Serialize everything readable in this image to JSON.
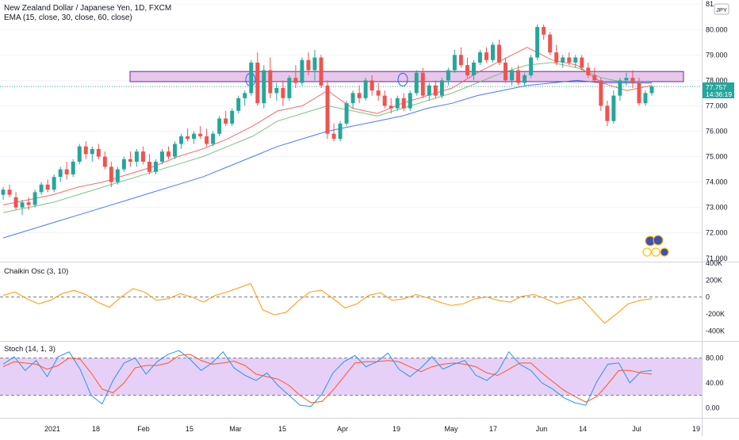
{
  "header": {
    "title": "New Zealand Dollar / Japanese Yen, 1D, FXCM",
    "ema_label": "EMA (15, close, 30, close, 60, close)",
    "currency_badge": "JPY"
  },
  "price_tag": {
    "price": "77.757",
    "countdown": "14:36:19"
  },
  "colors": {
    "up": "#26a69a",
    "down": "#ef5350",
    "ema15": "#ef5350",
    "ema30": "#66bb6a",
    "ema60": "#2962ff",
    "zone_fill": "#e1bee7",
    "zone_stroke": "#7b1fa2",
    "stoch_band": "#e1c4f5",
    "osc": "#ff9800",
    "stoch_k": "#2196f3",
    "stoch_d": "#ff5722"
  },
  "chart_data": [
    {
      "type": "candlestick",
      "title": "New Zealand Dollar / Japanese Yen, 1D, FXCM",
      "ylim": [
        70.9,
        81.1
      ],
      "y_ticks": [
        "71.000",
        "72.000",
        "73.000",
        "74.000",
        "75.000",
        "76.000",
        "77.000",
        "78.000",
        "79.000",
        "80.000",
        "81"
      ],
      "x_ticks": [
        "2021",
        "18",
        "Feb",
        "15",
        "Mar",
        "15",
        "Apr",
        "19",
        "May",
        "17",
        "Jun",
        "14",
        "Jul",
        "19"
      ],
      "series": [
        {
          "name": "EMA (15, close)",
          "values": [
            73.1,
            73.3,
            73.5,
            73.8,
            74.0,
            74.3,
            74.6,
            75.0,
            75.3,
            75.7,
            76.2,
            76.8,
            77.0,
            77.6,
            76.9,
            76.7,
            77.1,
            77.4,
            77.7,
            78.3,
            78.8,
            79.3,
            78.8,
            78.6,
            77.9,
            77.6,
            77.8
          ]
        },
        {
          "name": "EMA (30, close)",
          "values": [
            72.8,
            73.0,
            73.2,
            73.5,
            73.8,
            74.1,
            74.4,
            74.7,
            75.0,
            75.4,
            75.8,
            76.4,
            76.7,
            77.0,
            76.8,
            76.6,
            76.9,
            77.2,
            77.5,
            77.9,
            78.3,
            78.6,
            78.7,
            78.5,
            78.1,
            77.9,
            77.9
          ]
        },
        {
          "name": "EMA (60, close)",
          "values": [
            71.8,
            72.1,
            72.4,
            72.7,
            73.0,
            73.3,
            73.6,
            73.9,
            74.2,
            74.6,
            75.0,
            75.4,
            75.7,
            76.0,
            76.2,
            76.4,
            76.6,
            76.9,
            77.1,
            77.4,
            77.6,
            77.8,
            77.9,
            78.0,
            77.9,
            77.9,
            77.9
          ]
        }
      ],
      "candles": [
        {
          "o": 73.5,
          "h": 73.8,
          "l": 73.3,
          "c": 73.7
        },
        {
          "o": 73.7,
          "h": 73.9,
          "l": 73.4,
          "c": 73.5
        },
        {
          "o": 73.4,
          "h": 73.6,
          "l": 72.9,
          "c": 73.0
        },
        {
          "o": 73.0,
          "h": 73.3,
          "l": 72.7,
          "c": 73.2
        },
        {
          "o": 73.2,
          "h": 73.4,
          "l": 72.9,
          "c": 73.1
        },
        {
          "o": 73.1,
          "h": 73.7,
          "l": 73.0,
          "c": 73.6
        },
        {
          "o": 73.6,
          "h": 74.0,
          "l": 73.5,
          "c": 73.9
        },
        {
          "o": 73.9,
          "h": 74.1,
          "l": 73.6,
          "c": 73.7
        },
        {
          "o": 73.7,
          "h": 74.3,
          "l": 73.6,
          "c": 74.2
        },
        {
          "o": 74.2,
          "h": 74.6,
          "l": 74.0,
          "c": 74.5
        },
        {
          "o": 74.5,
          "h": 74.8,
          "l": 74.1,
          "c": 74.3
        },
        {
          "o": 74.3,
          "h": 74.9,
          "l": 74.2,
          "c": 74.8
        },
        {
          "o": 74.8,
          "h": 75.5,
          "l": 74.7,
          "c": 75.4
        },
        {
          "o": 75.4,
          "h": 75.6,
          "l": 74.9,
          "c": 75.1
        },
        {
          "o": 75.1,
          "h": 75.4,
          "l": 74.8,
          "c": 75.3
        },
        {
          "o": 75.3,
          "h": 75.5,
          "l": 74.9,
          "c": 75.0
        },
        {
          "o": 75.0,
          "h": 75.2,
          "l": 74.5,
          "c": 74.6
        },
        {
          "o": 74.6,
          "h": 74.8,
          "l": 73.8,
          "c": 74.0
        },
        {
          "o": 74.0,
          "h": 74.6,
          "l": 73.9,
          "c": 74.5
        },
        {
          "o": 74.5,
          "h": 75.0,
          "l": 74.4,
          "c": 74.9
        },
        {
          "o": 74.9,
          "h": 75.2,
          "l": 74.6,
          "c": 74.8
        },
        {
          "o": 74.8,
          "h": 75.3,
          "l": 74.6,
          "c": 75.2
        },
        {
          "o": 75.2,
          "h": 75.4,
          "l": 74.7,
          "c": 74.8
        },
        {
          "o": 74.8,
          "h": 75.1,
          "l": 74.3,
          "c": 74.4
        },
        {
          "o": 74.4,
          "h": 74.9,
          "l": 74.3,
          "c": 74.8
        },
        {
          "o": 74.8,
          "h": 75.3,
          "l": 74.7,
          "c": 75.2
        },
        {
          "o": 75.2,
          "h": 75.4,
          "l": 74.9,
          "c": 75.0
        },
        {
          "o": 75.0,
          "h": 75.6,
          "l": 74.9,
          "c": 75.5
        },
        {
          "o": 75.5,
          "h": 75.9,
          "l": 75.3,
          "c": 75.8
        },
        {
          "o": 75.8,
          "h": 76.1,
          "l": 75.6,
          "c": 75.7
        },
        {
          "o": 75.7,
          "h": 76.0,
          "l": 75.5,
          "c": 75.9
        },
        {
          "o": 75.9,
          "h": 76.2,
          "l": 75.7,
          "c": 75.8
        },
        {
          "o": 75.8,
          "h": 76.1,
          "l": 75.4,
          "c": 75.5
        },
        {
          "o": 75.5,
          "h": 76.0,
          "l": 75.4,
          "c": 75.9
        },
        {
          "o": 75.9,
          "h": 76.6,
          "l": 75.8,
          "c": 76.5
        },
        {
          "o": 76.5,
          "h": 76.8,
          "l": 76.2,
          "c": 76.3
        },
        {
          "o": 76.3,
          "h": 76.9,
          "l": 76.2,
          "c": 76.8
        },
        {
          "o": 76.8,
          "h": 77.4,
          "l": 76.7,
          "c": 77.3
        },
        {
          "o": 77.3,
          "h": 77.6,
          "l": 77.0,
          "c": 77.5
        },
        {
          "o": 77.5,
          "h": 78.8,
          "l": 77.4,
          "c": 78.7
        },
        {
          "o": 78.7,
          "h": 79.1,
          "l": 77.0,
          "c": 77.1
        },
        {
          "o": 77.1,
          "h": 78.6,
          "l": 76.9,
          "c": 78.4
        },
        {
          "o": 78.4,
          "h": 78.9,
          "l": 77.3,
          "c": 77.5
        },
        {
          "o": 77.5,
          "h": 77.9,
          "l": 77.2,
          "c": 77.7
        },
        {
          "o": 77.7,
          "h": 78.0,
          "l": 77.0,
          "c": 77.3
        },
        {
          "o": 77.3,
          "h": 78.2,
          "l": 77.2,
          "c": 78.1
        },
        {
          "o": 78.1,
          "h": 78.6,
          "l": 77.7,
          "c": 77.9
        },
        {
          "o": 77.9,
          "h": 78.9,
          "l": 77.8,
          "c": 78.8
        },
        {
          "o": 78.8,
          "h": 79.1,
          "l": 78.2,
          "c": 78.4
        },
        {
          "o": 78.4,
          "h": 79.2,
          "l": 78.0,
          "c": 78.9
        },
        {
          "o": 78.9,
          "h": 79.0,
          "l": 77.7,
          "c": 77.8
        },
        {
          "o": 77.8,
          "h": 78.0,
          "l": 75.7,
          "c": 75.9
        },
        {
          "o": 75.9,
          "h": 76.3,
          "l": 75.6,
          "c": 75.7
        },
        {
          "o": 75.7,
          "h": 76.4,
          "l": 75.6,
          "c": 76.3
        },
        {
          "o": 76.3,
          "h": 77.2,
          "l": 76.2,
          "c": 77.1
        },
        {
          "o": 77.1,
          "h": 77.6,
          "l": 76.9,
          "c": 77.5
        },
        {
          "o": 77.5,
          "h": 77.8,
          "l": 77.1,
          "c": 77.3
        },
        {
          "o": 77.3,
          "h": 78.1,
          "l": 77.2,
          "c": 78.0
        },
        {
          "o": 78.0,
          "h": 78.2,
          "l": 77.4,
          "c": 77.6
        },
        {
          "o": 77.6,
          "h": 77.9,
          "l": 77.2,
          "c": 77.4
        },
        {
          "o": 77.4,
          "h": 77.6,
          "l": 76.9,
          "c": 77.0
        },
        {
          "o": 77.0,
          "h": 77.3,
          "l": 76.7,
          "c": 76.9
        },
        {
          "o": 76.9,
          "h": 77.4,
          "l": 76.8,
          "c": 77.3
        },
        {
          "o": 77.3,
          "h": 77.5,
          "l": 76.8,
          "c": 76.9
        },
        {
          "o": 76.9,
          "h": 77.6,
          "l": 76.8,
          "c": 77.5
        },
        {
          "o": 77.5,
          "h": 78.4,
          "l": 77.4,
          "c": 78.3
        },
        {
          "o": 78.3,
          "h": 78.5,
          "l": 77.3,
          "c": 77.4
        },
        {
          "o": 77.4,
          "h": 77.9,
          "l": 77.2,
          "c": 77.8
        },
        {
          "o": 77.8,
          "h": 78.0,
          "l": 77.3,
          "c": 77.4
        },
        {
          "o": 77.4,
          "h": 78.1,
          "l": 77.3,
          "c": 78.0
        },
        {
          "o": 78.0,
          "h": 78.5,
          "l": 77.8,
          "c": 78.4
        },
        {
          "o": 78.4,
          "h": 79.2,
          "l": 78.3,
          "c": 79.0
        },
        {
          "o": 79.0,
          "h": 79.3,
          "l": 78.5,
          "c": 78.6
        },
        {
          "o": 78.6,
          "h": 78.9,
          "l": 78.1,
          "c": 78.2
        },
        {
          "o": 78.2,
          "h": 78.8,
          "l": 78.0,
          "c": 78.7
        },
        {
          "o": 78.7,
          "h": 79.2,
          "l": 78.6,
          "c": 79.1
        },
        {
          "o": 79.1,
          "h": 79.3,
          "l": 78.7,
          "c": 78.8
        },
        {
          "o": 78.8,
          "h": 79.5,
          "l": 78.7,
          "c": 79.4
        },
        {
          "o": 79.4,
          "h": 79.6,
          "l": 78.6,
          "c": 78.7
        },
        {
          "o": 78.7,
          "h": 78.9,
          "l": 77.9,
          "c": 78.0
        },
        {
          "o": 78.0,
          "h": 78.5,
          "l": 77.8,
          "c": 78.4
        },
        {
          "o": 78.4,
          "h": 78.6,
          "l": 77.8,
          "c": 77.9
        },
        {
          "o": 77.9,
          "h": 78.3,
          "l": 77.8,
          "c": 78.2
        },
        {
          "o": 78.2,
          "h": 79.0,
          "l": 78.1,
          "c": 78.9
        },
        {
          "o": 78.9,
          "h": 80.2,
          "l": 78.8,
          "c": 80.1
        },
        {
          "o": 80.1,
          "h": 80.2,
          "l": 79.6,
          "c": 79.8
        },
        {
          "o": 79.8,
          "h": 79.9,
          "l": 79.0,
          "c": 79.1
        },
        {
          "o": 79.1,
          "h": 79.4,
          "l": 78.6,
          "c": 78.7
        },
        {
          "o": 78.7,
          "h": 79.0,
          "l": 78.5,
          "c": 78.9
        },
        {
          "o": 78.9,
          "h": 79.1,
          "l": 78.6,
          "c": 78.7
        },
        {
          "o": 78.7,
          "h": 79.0,
          "l": 78.5,
          "c": 78.9
        },
        {
          "o": 78.9,
          "h": 79.0,
          "l": 78.4,
          "c": 78.5
        },
        {
          "o": 78.5,
          "h": 78.7,
          "l": 78.1,
          "c": 78.2
        },
        {
          "o": 78.2,
          "h": 78.5,
          "l": 77.9,
          "c": 78.0
        },
        {
          "o": 78.0,
          "h": 78.1,
          "l": 76.8,
          "c": 77.0
        },
        {
          "o": 77.0,
          "h": 77.2,
          "l": 76.2,
          "c": 76.4
        },
        {
          "o": 76.4,
          "h": 77.6,
          "l": 76.3,
          "c": 77.4
        },
        {
          "o": 77.4,
          "h": 78.1,
          "l": 77.2,
          "c": 78.0
        },
        {
          "o": 78.0,
          "h": 78.3,
          "l": 77.8,
          "c": 78.1
        },
        {
          "o": 78.1,
          "h": 78.4,
          "l": 77.7,
          "c": 77.9
        },
        {
          "o": 77.9,
          "h": 78.1,
          "l": 77.0,
          "c": 77.1
        },
        {
          "o": 77.1,
          "h": 77.6,
          "l": 77.0,
          "c": 77.5
        },
        {
          "o": 77.5,
          "h": 77.8,
          "l": 77.4,
          "c": 77.757
        }
      ]
    },
    {
      "type": "line",
      "title": "Chaikin Osc (3, 10)",
      "ylim": [
        -500000,
        400000
      ],
      "y_ticks": [
        "400K",
        "200K",
        "0",
        "-200K",
        "-400K"
      ],
      "series": [
        {
          "name": "Chaikin Osc (3, 10)",
          "values": [
            20000,
            60000,
            -20000,
            -80000,
            -40000,
            40000,
            80000,
            30000,
            -60000,
            -120000,
            0,
            100000,
            60000,
            -40000,
            -20000,
            40000,
            0,
            -60000,
            20000,
            60000,
            110000,
            160000,
            -150000,
            -210000,
            -180000,
            -50000,
            60000,
            80000,
            -20000,
            -130000,
            -80000,
            20000,
            50000,
            -40000,
            -20000,
            30000,
            -10000,
            -60000,
            -100000,
            -80000,
            -20000,
            0,
            -40000,
            -60000,
            10000,
            30000,
            -20000,
            -80000,
            -40000,
            -10000,
            -160000,
            -310000,
            -200000,
            -80000,
            -40000,
            -20000
          ]
        }
      ]
    },
    {
      "type": "line",
      "title": "Stoch (14, 1, 3)",
      "ylim": [
        -15,
        105
      ],
      "y_ticks": [
        "80.00",
        "40.00",
        "0.00"
      ],
      "series": [
        {
          "name": "%K",
          "values": [
            70,
            82,
            60,
            76,
            50,
            82,
            90,
            62,
            20,
            6,
            44,
            72,
            80,
            54,
            74,
            86,
            92,
            78,
            60,
            72,
            90,
            64,
            52,
            44,
            56,
            36,
            20,
            4,
            2,
            22,
            56,
            74,
            84,
            66,
            74,
            88,
            62,
            50,
            64,
            82,
            62,
            70,
            76,
            52,
            44,
            58,
            90,
            70,
            60,
            40,
            30,
            16,
            8,
            4,
            42,
            70,
            72,
            40,
            58,
            60
          ]
        },
        {
          "name": "%D",
          "values": [
            66,
            74,
            72,
            70,
            62,
            68,
            80,
            78,
            56,
            30,
            24,
            40,
            64,
            68,
            68,
            72,
            84,
            86,
            76,
            70,
            72,
            75,
            68,
            54,
            50,
            46,
            36,
            20,
            8,
            10,
            28,
            50,
            72,
            74,
            74,
            76,
            74,
            66,
            58,
            66,
            70,
            72,
            70,
            66,
            56,
            52,
            62,
            72,
            72,
            56,
            42,
            28,
            18,
            9,
            18,
            38,
            60,
            60,
            56,
            54
          ]
        }
      ]
    }
  ]
}
